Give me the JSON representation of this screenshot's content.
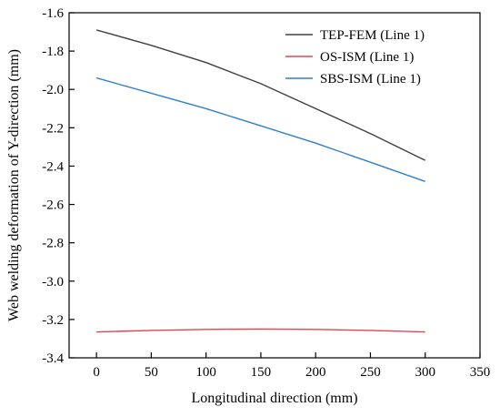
{
  "chart_data": {
    "type": "line",
    "title": "",
    "xlabel": "Longitudinal direction (mm)",
    "ylabel": "Web welding deformation of Y-direction (mm)",
    "xlim": [
      -25,
      350
    ],
    "ylim": [
      -3.4,
      -1.6
    ],
    "xticks": [
      0,
      50,
      100,
      150,
      200,
      250,
      300,
      350
    ],
    "yticks": [
      -1.6,
      -1.8,
      -2.0,
      -2.2,
      -2.4,
      -2.6,
      -2.8,
      -3.0,
      -3.2,
      -3.4
    ],
    "xtick_labels": [
      "0",
      "50",
      "100",
      "150",
      "200",
      "250",
      "300",
      "350"
    ],
    "ytick_labels": [
      "-1.6",
      "-1.8",
      "-2.0",
      "-2.2",
      "-2.4",
      "-2.6",
      "-2.8",
      "-3.0",
      "-3.2",
      "-3.4"
    ],
    "grid": false,
    "legend_position": "top-right",
    "series": [
      {
        "name": "TEP-FEM (Line 1)",
        "color": "#404040",
        "x": [
          0,
          50,
          100,
          150,
          200,
          250,
          300
        ],
        "y": [
          -1.69,
          -1.77,
          -1.86,
          -1.97,
          -2.1,
          -2.23,
          -2.37
        ]
      },
      {
        "name": "OS-ISM (Line 1)",
        "color": "#e8434b",
        "x": [
          0,
          50,
          100,
          150,
          200,
          250,
          300
        ],
        "y": [
          -3.265,
          -3.257,
          -3.252,
          -3.25,
          -3.252,
          -3.257,
          -3.265
        ]
      },
      {
        "name": "SBS-ISM (Line 1)",
        "color": "#2f7fd0",
        "x": [
          0,
          50,
          100,
          150,
          200,
          250,
          300
        ],
        "y": [
          -1.94,
          -2.02,
          -2.1,
          -2.19,
          -2.28,
          -2.38,
          -2.48
        ]
      }
    ]
  }
}
